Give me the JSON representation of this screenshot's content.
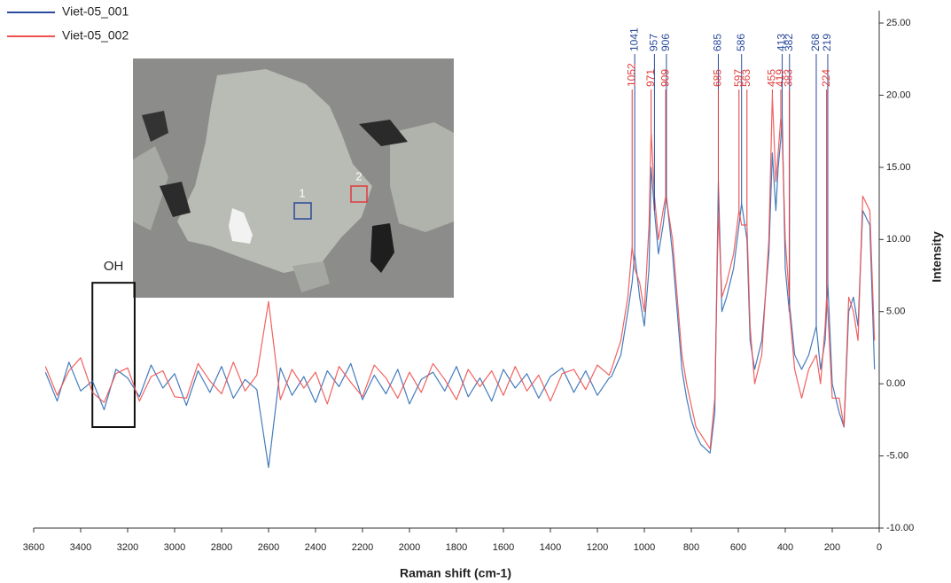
{
  "chart_data": {
    "type": "line",
    "x_label": "Raman shift (cm-1)",
    "y_label": "Intensity",
    "xlim": [
      3600,
      0
    ],
    "xticks": [
      3600,
      3400,
      3200,
      3000,
      2800,
      2600,
      2400,
      2200,
      2000,
      1800,
      1600,
      1400,
      1200,
      1000,
      800,
      600,
      400,
      200,
      0
    ],
    "ylim": [
      -10,
      25
    ],
    "yticks": [
      {
        "value": -10,
        "label": "-10.00"
      },
      {
        "value": -5,
        "label": "-5.00"
      },
      {
        "value": 0,
        "label": "0.00"
      },
      {
        "value": 5,
        "label": "5.00"
      },
      {
        "value": 10,
        "label": "10.00"
      },
      {
        "value": 15,
        "label": "15.00"
      },
      {
        "value": 20,
        "label": "20.00"
      },
      {
        "value": 25,
        "label": "25.00"
      }
    ],
    "legend_position": "top-left",
    "x": [
      3550,
      3500,
      3450,
      3400,
      3350,
      3300,
      3250,
      3200,
      3150,
      3100,
      3050,
      3000,
      2950,
      2900,
      2850,
      2800,
      2750,
      2700,
      2650,
      2600,
      2550,
      2500,
      2450,
      2400,
      2350,
      2300,
      2250,
      2200,
      2150,
      2100,
      2050,
      2000,
      1950,
      1900,
      1850,
      1800,
      1750,
      1700,
      1650,
      1600,
      1550,
      1500,
      1450,
      1400,
      1350,
      1300,
      1250,
      1200,
      1150,
      1140,
      1100,
      1070,
      1052,
      1041,
      1020,
      1000,
      980,
      971,
      957,
      940,
      920,
      909,
      906,
      880,
      860,
      840,
      820,
      800,
      780,
      760,
      740,
      720,
      700,
      685,
      670,
      650,
      620,
      597,
      586,
      563,
      550,
      530,
      500,
      470,
      455,
      440,
      430,
      419,
      413,
      400,
      383,
      382,
      360,
      330,
      300,
      268,
      250,
      230,
      224,
      219,
      200,
      170,
      150,
      130,
      110,
      90,
      70,
      40,
      20
    ],
    "series": [
      {
        "name": "Viet-05_001",
        "color": "#2f6db5",
        "label_color": "#2b4a9c",
        "values": [
          0.8,
          -1.2,
          1.5,
          -0.5,
          0.2,
          -1.8,
          1.0,
          0.4,
          -0.9,
          1.3,
          -0.3,
          0.7,
          -1.5,
          0.9,
          -0.6,
          1.2,
          -1.0,
          0.3,
          -0.4,
          -5.8,
          1.1,
          -0.8,
          0.5,
          -1.3,
          0.9,
          -0.2,
          1.4,
          -1.1,
          0.6,
          -0.7,
          1.0,
          -1.4,
          0.3,
          0.8,
          -0.5,
          1.2,
          -0.9,
          0.4,
          -1.2,
          1.0,
          -0.3,
          0.7,
          -1.0,
          0.5,
          1.1,
          -0.6,
          0.9,
          -0.8,
          0.4,
          0.5,
          2,
          5,
          7,
          9,
          6,
          4,
          8,
          15,
          12,
          9,
          11,
          12.5,
          13,
          9,
          5,
          1,
          -1,
          -2.5,
          -3.5,
          -4.2,
          -4.5,
          -4.8,
          -2,
          14,
          5,
          6,
          8,
          11,
          12.5,
          10,
          3,
          1,
          3,
          9,
          16,
          12,
          15,
          17,
          18.5,
          8,
          5,
          5.5,
          2,
          1,
          2,
          4,
          1,
          3,
          5,
          7,
          0,
          -2,
          -3,
          5,
          6,
          4,
          12,
          11,
          1
        ],
        "peaks": [
          1041,
          957,
          906,
          685,
          586,
          413,
          382,
          268,
          219
        ]
      },
      {
        "name": "Viet-05_002",
        "color": "#f05050",
        "label_color": "#e03a3a",
        "values": [
          1.2,
          -0.8,
          0.9,
          1.8,
          -0.6,
          -1.3,
          0.7,
          1.1,
          -1.2,
          0.5,
          0.9,
          -0.9,
          -1.0,
          1.4,
          0.2,
          -0.7,
          1.5,
          -0.5,
          0.6,
          5.7,
          -1.1,
          1.0,
          -0.3,
          0.8,
          -1.4,
          1.2,
          0.1,
          -0.9,
          1.3,
          0.4,
          -1.0,
          0.8,
          -0.6,
          1.4,
          0.3,
          -1.1,
          1.0,
          -0.2,
          0.9,
          -0.8,
          1.2,
          -0.5,
          0.6,
          -1.2,
          0.7,
          1.0,
          -0.4,
          1.3,
          0.6,
          1,
          3,
          6,
          9.5,
          8,
          7,
          5,
          11,
          17.5,
          13,
          10,
          12,
          13,
          12.8,
          10,
          6,
          2,
          0,
          -1.5,
          -3,
          -3.5,
          -4,
          -4.5,
          -1,
          12,
          6,
          7,
          9,
          12,
          11,
          11,
          4,
          0,
          2,
          10,
          20,
          14,
          16,
          18.5,
          17,
          10,
          6,
          5,
          1,
          -1,
          1,
          2,
          0,
          4,
          6,
          5,
          -1,
          -1,
          -3,
          6,
          5,
          3,
          13,
          12,
          3
        ],
        "peaks": [
          1052,
          971,
          909,
          685,
          597,
          563,
          455,
          419,
          383,
          224
        ]
      }
    ],
    "region": {
      "label": "OH",
      "x": [
        3350,
        3170
      ],
      "y": [
        7,
        -3
      ]
    },
    "inset_markers": [
      "1",
      "2"
    ]
  }
}
